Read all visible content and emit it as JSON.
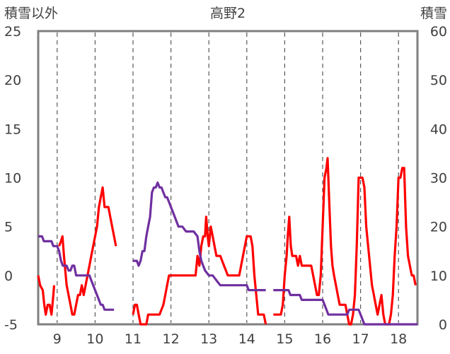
{
  "chart_data": {
    "type": "line",
    "title": "高野2",
    "left_axis_label": "積雪以外",
    "right_axis_label": "積雪",
    "ylim_left": [
      -5,
      25
    ],
    "ylim_right": [
      0,
      60
    ],
    "xlim": [
      8.5,
      18.5
    ],
    "left_ticks": [
      "25",
      "20",
      "15",
      "10",
      "5",
      "0",
      "-5"
    ],
    "right_ticks": [
      "60",
      "50",
      "40",
      "30",
      "20",
      "10",
      "0"
    ],
    "x_ticks": [
      "9",
      "10",
      "11",
      "12",
      "13",
      "14",
      "15",
      "16",
      "17",
      "18"
    ],
    "grid": "dashed vertical at each day",
    "series": [
      {
        "axis": "left",
        "color": "#ff0000",
        "segments": [
          [
            [
              8.5,
              0
            ],
            [
              8.55,
              -1
            ],
            [
              8.62,
              -1.5
            ],
            [
              8.66,
              -3
            ],
            [
              8.7,
              -4
            ],
            [
              8.75,
              -3
            ],
            [
              8.8,
              -3
            ],
            [
              8.85,
              -4
            ],
            [
              8.9,
              -2
            ],
            [
              8.92,
              -1
            ]
          ],
          [
            [
              9.05,
              3
            ],
            [
              9.1,
              3.5
            ],
            [
              9.14,
              4
            ],
            [
              9.18,
              2
            ],
            [
              9.25,
              -1
            ],
            [
              9.3,
              -2
            ],
            [
              9.35,
              -3
            ],
            [
              9.4,
              -4
            ],
            [
              9.45,
              -4
            ],
            [
              9.5,
              -3
            ],
            [
              9.55,
              -2
            ],
            [
              9.6,
              -2
            ],
            [
              9.65,
              -1
            ],
            [
              9.7,
              -2
            ],
            [
              9.75,
              -1
            ],
            [
              9.8,
              0
            ],
            [
              9.85,
              1
            ],
            [
              9.9,
              2
            ],
            [
              9.95,
              3
            ],
            [
              10.0,
              4
            ],
            [
              10.05,
              5
            ],
            [
              10.1,
              7
            ],
            [
              10.15,
              8
            ],
            [
              10.2,
              9
            ],
            [
              10.25,
              7
            ],
            [
              10.3,
              7
            ],
            [
              10.35,
              7
            ],
            [
              10.4,
              6
            ],
            [
              10.45,
              5
            ],
            [
              10.5,
              4
            ],
            [
              10.55,
              3
            ]
          ],
          [
            [
              11.0,
              -4
            ],
            [
              11.05,
              -3
            ],
            [
              11.1,
              -3
            ],
            [
              11.15,
              -4
            ],
            [
              11.2,
              -5
            ],
            [
              11.3,
              -5
            ],
            [
              11.35,
              -5
            ],
            [
              11.4,
              -4
            ],
            [
              11.5,
              -4
            ],
            [
              11.6,
              -4
            ],
            [
              11.7,
              -4
            ],
            [
              11.8,
              -3
            ],
            [
              11.85,
              -2
            ],
            [
              11.9,
              -1
            ],
            [
              11.95,
              0
            ],
            [
              12.0,
              0
            ],
            [
              12.1,
              0
            ],
            [
              12.2,
              0
            ],
            [
              12.3,
              0
            ],
            [
              12.4,
              0
            ],
            [
              12.5,
              0
            ],
            [
              12.6,
              0
            ],
            [
              12.65,
              0
            ],
            [
              12.7,
              2
            ],
            [
              12.75,
              1
            ],
            [
              12.8,
              3
            ],
            [
              12.85,
              4
            ],
            [
              12.9,
              4
            ],
            [
              12.93,
              6
            ],
            [
              12.97,
              4
            ],
            [
              13.0,
              3
            ],
            [
              13.05,
              5
            ],
            [
              13.1,
              4
            ],
            [
              13.15,
              3
            ],
            [
              13.2,
              2
            ],
            [
              13.3,
              2
            ],
            [
              13.4,
              1
            ],
            [
              13.5,
              0
            ],
            [
              13.6,
              0
            ],
            [
              13.7,
              0
            ],
            [
              13.8,
              0
            ],
            [
              13.9,
              2
            ],
            [
              13.95,
              3
            ],
            [
              14.0,
              4
            ],
            [
              14.1,
              4
            ],
            [
              14.15,
              3
            ],
            [
              14.2,
              0
            ],
            [
              14.25,
              -2
            ],
            [
              14.3,
              -4
            ],
            [
              14.35,
              -4
            ],
            [
              14.45,
              -4
            ],
            [
              14.5,
              -5
            ]
          ],
          [
            [
              14.7,
              -4
            ],
            [
              14.8,
              -4
            ],
            [
              14.9,
              -4
            ],
            [
              14.95,
              -3
            ],
            [
              15.0,
              0
            ],
            [
              15.05,
              2
            ],
            [
              15.08,
              4
            ],
            [
              15.12,
              6
            ],
            [
              15.16,
              3
            ],
            [
              15.2,
              2
            ],
            [
              15.25,
              2
            ],
            [
              15.3,
              2
            ],
            [
              15.35,
              1
            ],
            [
              15.4,
              2
            ],
            [
              15.45,
              1
            ],
            [
              15.5,
              1
            ],
            [
              15.6,
              1
            ],
            [
              15.7,
              1
            ],
            [
              15.75,
              0
            ],
            [
              15.8,
              -1
            ],
            [
              15.85,
              -2
            ],
            [
              15.9,
              -2
            ],
            [
              15.95,
              0
            ],
            [
              16.0,
              5
            ],
            [
              16.05,
              10
            ],
            [
              16.1,
              11
            ],
            [
              16.13,
              12
            ],
            [
              16.18,
              7
            ],
            [
              16.22,
              3
            ],
            [
              16.26,
              1
            ],
            [
              16.3,
              0
            ],
            [
              16.35,
              -1
            ],
            [
              16.4,
              -2
            ],
            [
              16.45,
              -3
            ],
            [
              16.5,
              -3
            ],
            [
              16.6,
              -3
            ],
            [
              16.65,
              -4
            ],
            [
              16.7,
              -5
            ],
            [
              16.75,
              -5
            ],
            [
              16.8,
              -4
            ],
            [
              16.85,
              -2
            ],
            [
              16.9,
              3
            ],
            [
              16.95,
              10
            ],
            [
              17.0,
              10
            ],
            [
              17.05,
              10
            ],
            [
              17.1,
              9
            ],
            [
              17.15,
              5
            ],
            [
              17.2,
              3
            ],
            [
              17.25,
              1
            ],
            [
              17.3,
              -1
            ],
            [
              17.35,
              -2
            ],
            [
              17.4,
              -3
            ],
            [
              17.45,
              -4
            ],
            [
              17.5,
              -3
            ],
            [
              17.55,
              -2
            ],
            [
              17.6,
              -4
            ],
            [
              17.65,
              -5
            ],
            [
              17.75,
              -5
            ],
            [
              17.8,
              -4
            ],
            [
              17.85,
              -2
            ],
            [
              17.9,
              2
            ],
            [
              17.95,
              5
            ],
            [
              18.0,
              10
            ],
            [
              18.05,
              10
            ],
            [
              18.1,
              11
            ],
            [
              18.15,
              11
            ],
            [
              18.2,
              5
            ],
            [
              18.25,
              2
            ],
            [
              18.3,
              1
            ],
            [
              18.35,
              0
            ],
            [
              18.4,
              0
            ],
            [
              18.45,
              -1
            ]
          ]
        ]
      },
      {
        "axis": "right",
        "color": "#7030a0",
        "segments": [
          [
            [
              8.5,
              18
            ],
            [
              8.6,
              18
            ],
            [
              8.65,
              17
            ],
            [
              8.75,
              17
            ],
            [
              8.85,
              17
            ],
            [
              8.9,
              16
            ],
            [
              9.0,
              16
            ],
            [
              9.05,
              15
            ],
            [
              9.1,
              13
            ],
            [
              9.15,
              12
            ],
            [
              9.25,
              12
            ],
            [
              9.3,
              11
            ],
            [
              9.35,
              11
            ],
            [
              9.4,
              12
            ],
            [
              9.45,
              12
            ],
            [
              9.5,
              10
            ],
            [
              9.6,
              10
            ],
            [
              9.7,
              10
            ],
            [
              9.8,
              10
            ],
            [
              9.85,
              10
            ],
            [
              9.9,
              9
            ],
            [
              9.95,
              8
            ],
            [
              10.0,
              7
            ],
            [
              10.05,
              6
            ],
            [
              10.1,
              5
            ],
            [
              10.15,
              4
            ],
            [
              10.2,
              4
            ],
            [
              10.25,
              3
            ],
            [
              10.3,
              3
            ],
            [
              10.4,
              3
            ],
            [
              10.5,
              3
            ]
          ],
          [
            [
              11.0,
              13
            ],
            [
              11.1,
              13
            ],
            [
              11.15,
              12
            ],
            [
              11.2,
              13
            ],
            [
              11.25,
              15
            ],
            [
              11.3,
              15
            ],
            [
              11.35,
              18
            ],
            [
              11.4,
              20
            ],
            [
              11.45,
              22
            ],
            [
              11.5,
              27
            ],
            [
              11.55,
              28
            ],
            [
              11.6,
              28
            ],
            [
              11.65,
              29
            ],
            [
              11.7,
              28
            ],
            [
              11.75,
              28
            ],
            [
              11.8,
              27
            ],
            [
              11.85,
              26
            ],
            [
              11.9,
              26
            ],
            [
              11.95,
              25
            ],
            [
              12.0,
              24
            ],
            [
              12.05,
              23
            ],
            [
              12.1,
              22
            ],
            [
              12.15,
              21
            ],
            [
              12.2,
              20
            ],
            [
              12.3,
              20
            ],
            [
              12.4,
              19
            ],
            [
              12.5,
              19
            ],
            [
              12.6,
              19
            ],
            [
              12.7,
              18
            ],
            [
              12.75,
              15
            ],
            [
              12.8,
              13
            ],
            [
              12.9,
              11
            ],
            [
              13.0,
              10
            ],
            [
              13.1,
              10
            ],
            [
              13.2,
              9
            ],
            [
              13.3,
              8
            ],
            [
              13.4,
              8
            ],
            [
              13.5,
              8
            ],
            [
              13.6,
              8
            ],
            [
              13.7,
              8
            ],
            [
              13.8,
              8
            ],
            [
              13.9,
              8
            ],
            [
              14.0,
              8
            ],
            [
              14.05,
              7
            ],
            [
              14.1,
              7
            ],
            [
              14.2,
              7
            ],
            [
              14.3,
              7
            ],
            [
              14.4,
              7
            ],
            [
              14.5,
              7
            ]
          ],
          [
            [
              14.7,
              7
            ],
            [
              14.8,
              7
            ],
            [
              14.9,
              7
            ],
            [
              15.0,
              7
            ],
            [
              15.1,
              7
            ],
            [
              15.15,
              6
            ],
            [
              15.2,
              6
            ],
            [
              15.3,
              6
            ],
            [
              15.4,
              6
            ],
            [
              15.45,
              5
            ],
            [
              15.5,
              5
            ],
            [
              15.6,
              5
            ],
            [
              15.7,
              5
            ],
            [
              15.8,
              5
            ],
            [
              15.9,
              5
            ],
            [
              16.0,
              5
            ],
            [
              16.05,
              4
            ],
            [
              16.1,
              3
            ],
            [
              16.15,
              2
            ],
            [
              16.2,
              2
            ],
            [
              16.3,
              2
            ],
            [
              16.4,
              2
            ],
            [
              16.5,
              2
            ],
            [
              16.6,
              2
            ],
            [
              16.65,
              2
            ],
            [
              16.7,
              3
            ],
            [
              16.8,
              3
            ],
            [
              16.9,
              3
            ],
            [
              16.95,
              3
            ],
            [
              17.0,
              2
            ],
            [
              17.05,
              1
            ],
            [
              17.1,
              0
            ],
            [
              17.2,
              0
            ],
            [
              17.4,
              0
            ],
            [
              17.6,
              0
            ],
            [
              17.8,
              0
            ],
            [
              18.0,
              0
            ],
            [
              18.2,
              0
            ],
            [
              18.4,
              0
            ],
            [
              18.5,
              0
            ]
          ]
        ]
      }
    ]
  }
}
